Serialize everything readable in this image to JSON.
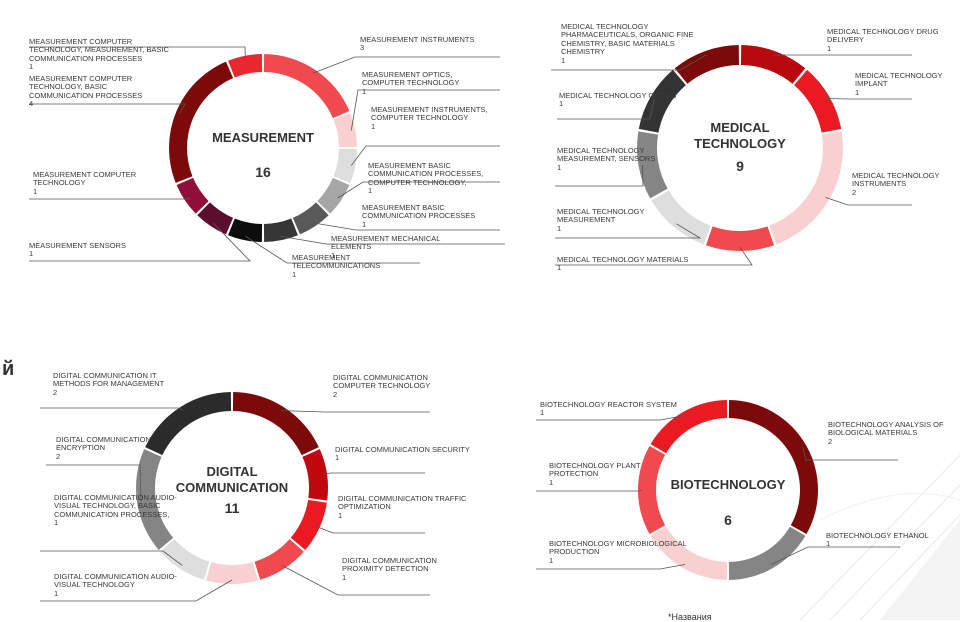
{
  "page": {
    "fragment": "й",
    "footnote": "*Названия"
  },
  "chart_data": [
    {
      "type": "pie",
      "title": "MEASUREMENT",
      "total": "16",
      "slices": [
        {
          "label": "MEASUREMENT INSTRUMENTS",
          "value": 3,
          "color": "#f04a4f"
        },
        {
          "label": "MEASUREMENT OPTICS, COMPUTER TECHNOLOGY",
          "value": 1,
          "color": "#f8d0d1"
        },
        {
          "label": "MEASUREMENT INSTRUMENTS, COMPUTER TECHNOLOGY",
          "value": 1,
          "color": "#dddddd"
        },
        {
          "label": "MEASUREMENT BASIC COMMUNICATION PROCESSES, COMPUTER TECHNOLOGY,",
          "value": 1,
          "color": "#a6a6a6"
        },
        {
          "label": "MEASUREMENT BASIC COMMUNICATION PROCESSES",
          "value": 1,
          "color": "#595959"
        },
        {
          "label": "MEASUREMENT MECHANICAL ELEMENTS",
          "value": 1,
          "color": "#363636"
        },
        {
          "label": "MEASUREMENT TELECOMMUNICATIONS",
          "value": 1,
          "color": "#0d0d0d"
        },
        {
          "label": "MEASUREMENT SENSORS",
          "value": 1,
          "color": "#5c0e2d"
        },
        {
          "label": "MEASUREMENT COMPUTER TECHNOLOGY",
          "value": 1,
          "color": "#900f3a"
        },
        {
          "label": "MEASUREMENT COMPUTER TECHNOLOGY, BASIC COMMUNICATION PROCESSES",
          "value": 4,
          "color": "#7c0a0a"
        },
        {
          "label": "MEASUREMENT COMPUTER TECHNOLOGY, MEASUREMENT, BASIC COMMUNICATION PROCESSES",
          "value": 1,
          "color": "#e8272f"
        }
      ]
    },
    {
      "type": "pie",
      "title": "MEDICAL TECHNOLOGY",
      "total": "9",
      "slices": [
        {
          "label": "MEDICAL TECHNOLOGY DRUG DELIVERY",
          "value": 1,
          "color": "#b8090f"
        },
        {
          "label": "MEDICAL TECHNOLOGY IMPLANT",
          "value": 1,
          "color": "#ea1a22"
        },
        {
          "label": "MEDICAL TECHNOLOGY INSTRUMENTS",
          "value": 2,
          "color": "#f8d0d1"
        },
        {
          "label": "MEDICAL TECHNOLOGY MATERIALS",
          "value": 1,
          "color": "#f04a4f"
        },
        {
          "label": "MEDICAL TECHNOLOGY MEASUREMENT",
          "value": 1,
          "color": "#dedede"
        },
        {
          "label": "MEDICAL TECHNOLOGY MEASUREMENT, SENSORS",
          "value": 1,
          "color": "#858585"
        },
        {
          "label": "MEDICAL TECHNOLOGY OPTICS",
          "value": 1,
          "color": "#333333"
        },
        {
          "label": "MEDICAL TECHNOLOGY PHARMACEUTICALS, ORGANIC FINE CHEMISTRY, BASIC MATERIALS CHEMISTRY",
          "value": 1,
          "color": "#7c0a0a"
        }
      ]
    },
    {
      "type": "pie",
      "title": "DIGITAL COMMUNICATION",
      "total": "11",
      "slices": [
        {
          "label": "DIGITAL COMMUNICATION COMPUTER TECHNOLOGY",
          "value": 2,
          "color": "#7c0a0a"
        },
        {
          "label": "DIGITAL COMMUNICATION SECURITY",
          "value": 1,
          "color": "#c0090f"
        },
        {
          "label": "DIGITAL COMMUNICATION TRAFFIC OPTIMIZATION",
          "value": 1,
          "color": "#ea1a22"
        },
        {
          "label": "DIGITAL COMMUNICATION PROXIMITY DETECTION",
          "value": 1,
          "color": "#f04a4f"
        },
        {
          "label": "DIGITAL COMMUNICATION AUDIO-VISUAL TECHNOLOGY",
          "value": 1,
          "color": "#f8d0d1"
        },
        {
          "label": "DIGITAL COMMUNICATION AUDIO-VISUAL TECHNOLOGY, BASIC COMMUNICATION PROCESSES,",
          "value": 1,
          "color": "#dedede"
        },
        {
          "label": "DIGITAL COMMUNICATION ENCRYPTION",
          "value": 2,
          "color": "#858585"
        },
        {
          "label": "DIGITAL COMMUNICATION IT METHODS FOR MANAGEMENT",
          "value": 2,
          "color": "#2b2b2b"
        }
      ]
    },
    {
      "type": "pie",
      "title": "BIOTECHNOLOGY",
      "total": "6",
      "slices": [
        {
          "label": "BIOTECHNOLOGY ANALYSIS OF BIOLOGICAL MATERIALS",
          "value": 2,
          "color": "#7c0a0a"
        },
        {
          "label": "BIOTECHNOLOGY ETHANOL",
          "value": 1,
          "color": "#858585"
        },
        {
          "label": "BIOTECHNOLOGY MICROBIOLOGICAL PRODUCTION",
          "value": 1,
          "color": "#f8d0d1"
        },
        {
          "label": "BIOTECHNOLOGY PLANT PROTECTION",
          "value": 1,
          "color": "#f04a4f"
        },
        {
          "label": "BIOTECHNOLOGY REACTOR SYSTEM",
          "value": 1,
          "color": "#ea1a22"
        }
      ]
    }
  ]
}
